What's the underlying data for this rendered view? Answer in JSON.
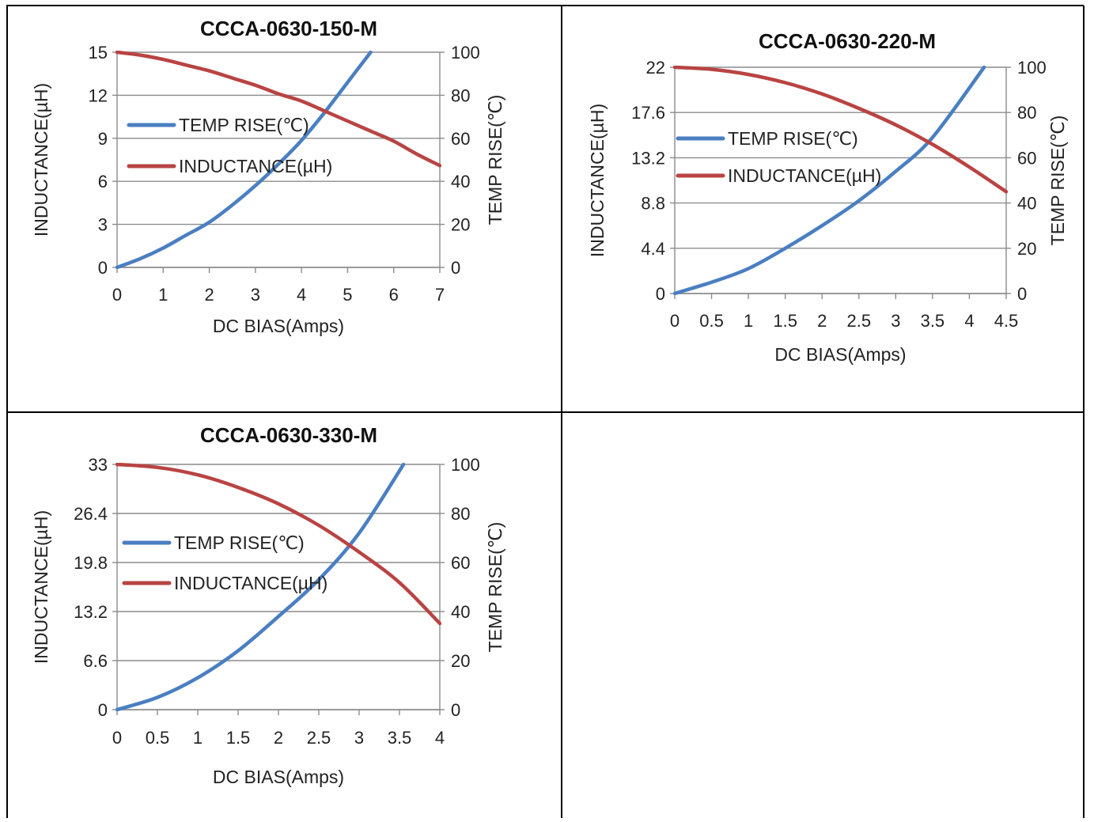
{
  "colors": {
    "temp_series": "#4a7fc1",
    "inductance_series": "#b84443",
    "grid": "#8c8c8c",
    "border": "#000000"
  },
  "chart_data": [
    {
      "type": "line",
      "title": "CCCA-0630-150-M",
      "xlabel": "DC  BIAS(Amps)",
      "ylabel_left": "INDUCTANCE(µH)",
      "ylabel_right": "TEMP RISE(℃)",
      "x_ticks": [
        "0",
        "1",
        "2",
        "3",
        "4",
        "5",
        "6",
        "7"
      ],
      "y_left_ticks": [
        "0",
        "3",
        "6",
        "9",
        "12",
        "15"
      ],
      "y_right_ticks": [
        "0",
        "20",
        "40",
        "60",
        "80",
        "100"
      ],
      "xlim": [
        0,
        7
      ],
      "y_left_lim": [
        0,
        15
      ],
      "y_right_lim": [
        0,
        100
      ],
      "grid": true,
      "legend_position": "left",
      "series": [
        {
          "name": "TEMP RISE(℃)",
          "axis": "right",
          "color": "#4a7fc1",
          "x": [
            0,
            0.5,
            1,
            1.5,
            2,
            2.5,
            3,
            3.5,
            4,
            4.5,
            5,
            5.5
          ],
          "y": [
            0,
            4,
            9,
            15,
            21,
            29,
            38,
            48,
            59,
            72,
            86,
            100
          ]
        },
        {
          "name": "INDUCTANCE(µH)",
          "axis": "left",
          "color": "#b84443",
          "x": [
            0,
            0.5,
            1,
            1.5,
            2,
            2.5,
            3,
            3.5,
            4,
            4.5,
            5,
            5.5,
            6,
            6.5,
            7
          ],
          "y": [
            15,
            14.8,
            14.5,
            14.1,
            13.7,
            13.2,
            12.7,
            12.1,
            11.6,
            10.9,
            10.2,
            9.5,
            8.8,
            7.9,
            7.1
          ]
        }
      ]
    },
    {
      "type": "line",
      "title": "CCCA-0630-220-M",
      "xlabel": "DC  BIAS(Amps)",
      "ylabel_left": "INDUCTANCE(µH)",
      "ylabel_right": "TEMP RISE(℃)",
      "x_ticks": [
        "0",
        "0.5",
        "1",
        "1.5",
        "2",
        "2.5",
        "3",
        "3.5",
        "4",
        "4.5"
      ],
      "y_left_ticks": [
        "0",
        "4.4",
        "8.8",
        "13.2",
        "17.6",
        "22"
      ],
      "y_right_ticks": [
        "0",
        "20",
        "40",
        "60",
        "80",
        "100"
      ],
      "xlim": [
        0,
        4.5
      ],
      "y_left_lim": [
        0,
        22
      ],
      "y_right_lim": [
        0,
        100
      ],
      "grid": true,
      "legend_position": "left",
      "series": [
        {
          "name": "TEMP RISE(℃)",
          "axis": "right",
          "color": "#4a7fc1",
          "x": [
            0,
            0.5,
            1,
            1.5,
            2,
            2.5,
            3,
            3.5,
            4.2
          ],
          "y": [
            0,
            5,
            11,
            20,
            30,
            41,
            54,
            69,
            100
          ]
        },
        {
          "name": "INDUCTANCE(µH)",
          "axis": "left",
          "color": "#b84443",
          "x": [
            0,
            0.5,
            1,
            1.5,
            2,
            2.5,
            3,
            3.5,
            4,
            4.5
          ],
          "y": [
            22,
            21.8,
            21.3,
            20.5,
            19.4,
            18.0,
            16.4,
            14.5,
            12.3,
            9.9
          ]
        }
      ]
    },
    {
      "type": "line",
      "title": "CCCA-0630-330-M",
      "xlabel": "DC  BIAS(Amps)",
      "ylabel_left": "INDUCTANCE(µH)",
      "ylabel_right": "TEMP RISE(℃)",
      "x_ticks": [
        "0",
        "0.5",
        "1",
        "1.5",
        "2",
        "2.5",
        "3",
        "3.5",
        "4"
      ],
      "y_left_ticks": [
        "0",
        "6.6",
        "13.2",
        "19.8",
        "26.4",
        "33"
      ],
      "y_right_ticks": [
        "0",
        "20",
        "40",
        "60",
        "80",
        "100"
      ],
      "xlim": [
        0,
        4
      ],
      "y_left_lim": [
        0,
        33
      ],
      "y_right_lim": [
        0,
        100
      ],
      "grid": true,
      "legend_position": "left",
      "series": [
        {
          "name": "TEMP RISE(℃)",
          "axis": "right",
          "color": "#4a7fc1",
          "x": [
            0,
            0.5,
            1,
            1.5,
            2,
            2.5,
            3,
            3.55
          ],
          "y": [
            0,
            5,
            13,
            24,
            38,
            53,
            72,
            100
          ]
        },
        {
          "name": "INDUCTANCE(µH)",
          "axis": "left",
          "color": "#b84443",
          "x": [
            0,
            0.5,
            1,
            1.5,
            2,
            2.5,
            3,
            3.5,
            4
          ],
          "y": [
            33,
            32.6,
            31.6,
            29.9,
            27.7,
            24.8,
            21.2,
            17.1,
            11.6
          ]
        }
      ]
    }
  ]
}
